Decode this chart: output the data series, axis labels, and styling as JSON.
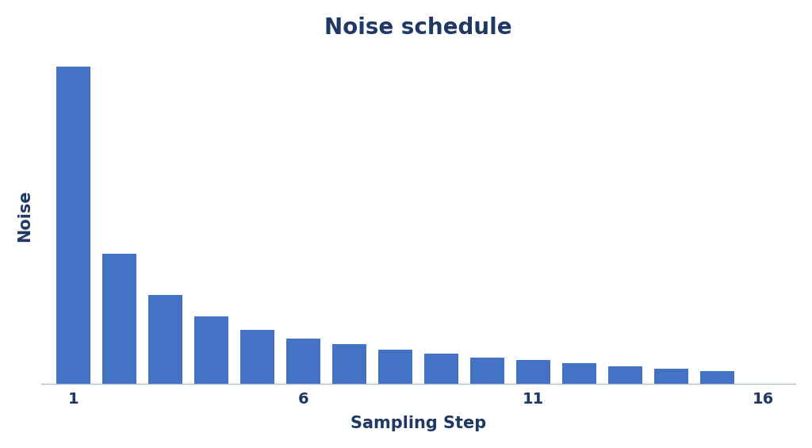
{
  "title": "Noise schedule",
  "xlabel": "Sampling Step",
  "ylabel": "Noise",
  "bar_color": "#4472C4",
  "background_color": "#ffffff",
  "plot_background": "#ffffff",
  "n_steps": 15,
  "x_ticks": [
    1,
    6,
    11,
    16
  ],
  "values": [
    14.6,
    6.0,
    4.1,
    3.1,
    2.5,
    2.1,
    1.82,
    1.58,
    1.38,
    1.22,
    1.1,
    0.97,
    0.82,
    0.7,
    0.6
  ],
  "title_fontsize": 20,
  "label_fontsize": 15,
  "tick_fontsize": 14,
  "title_color": "#1f3864",
  "label_color": "#1f3864",
  "tick_color": "#1f3864",
  "grid_color": "#cdd5e0",
  "spine_color": "#b0bec5",
  "xlim_left": 0.3,
  "xlim_right": 16.7,
  "bar_width": 0.75
}
